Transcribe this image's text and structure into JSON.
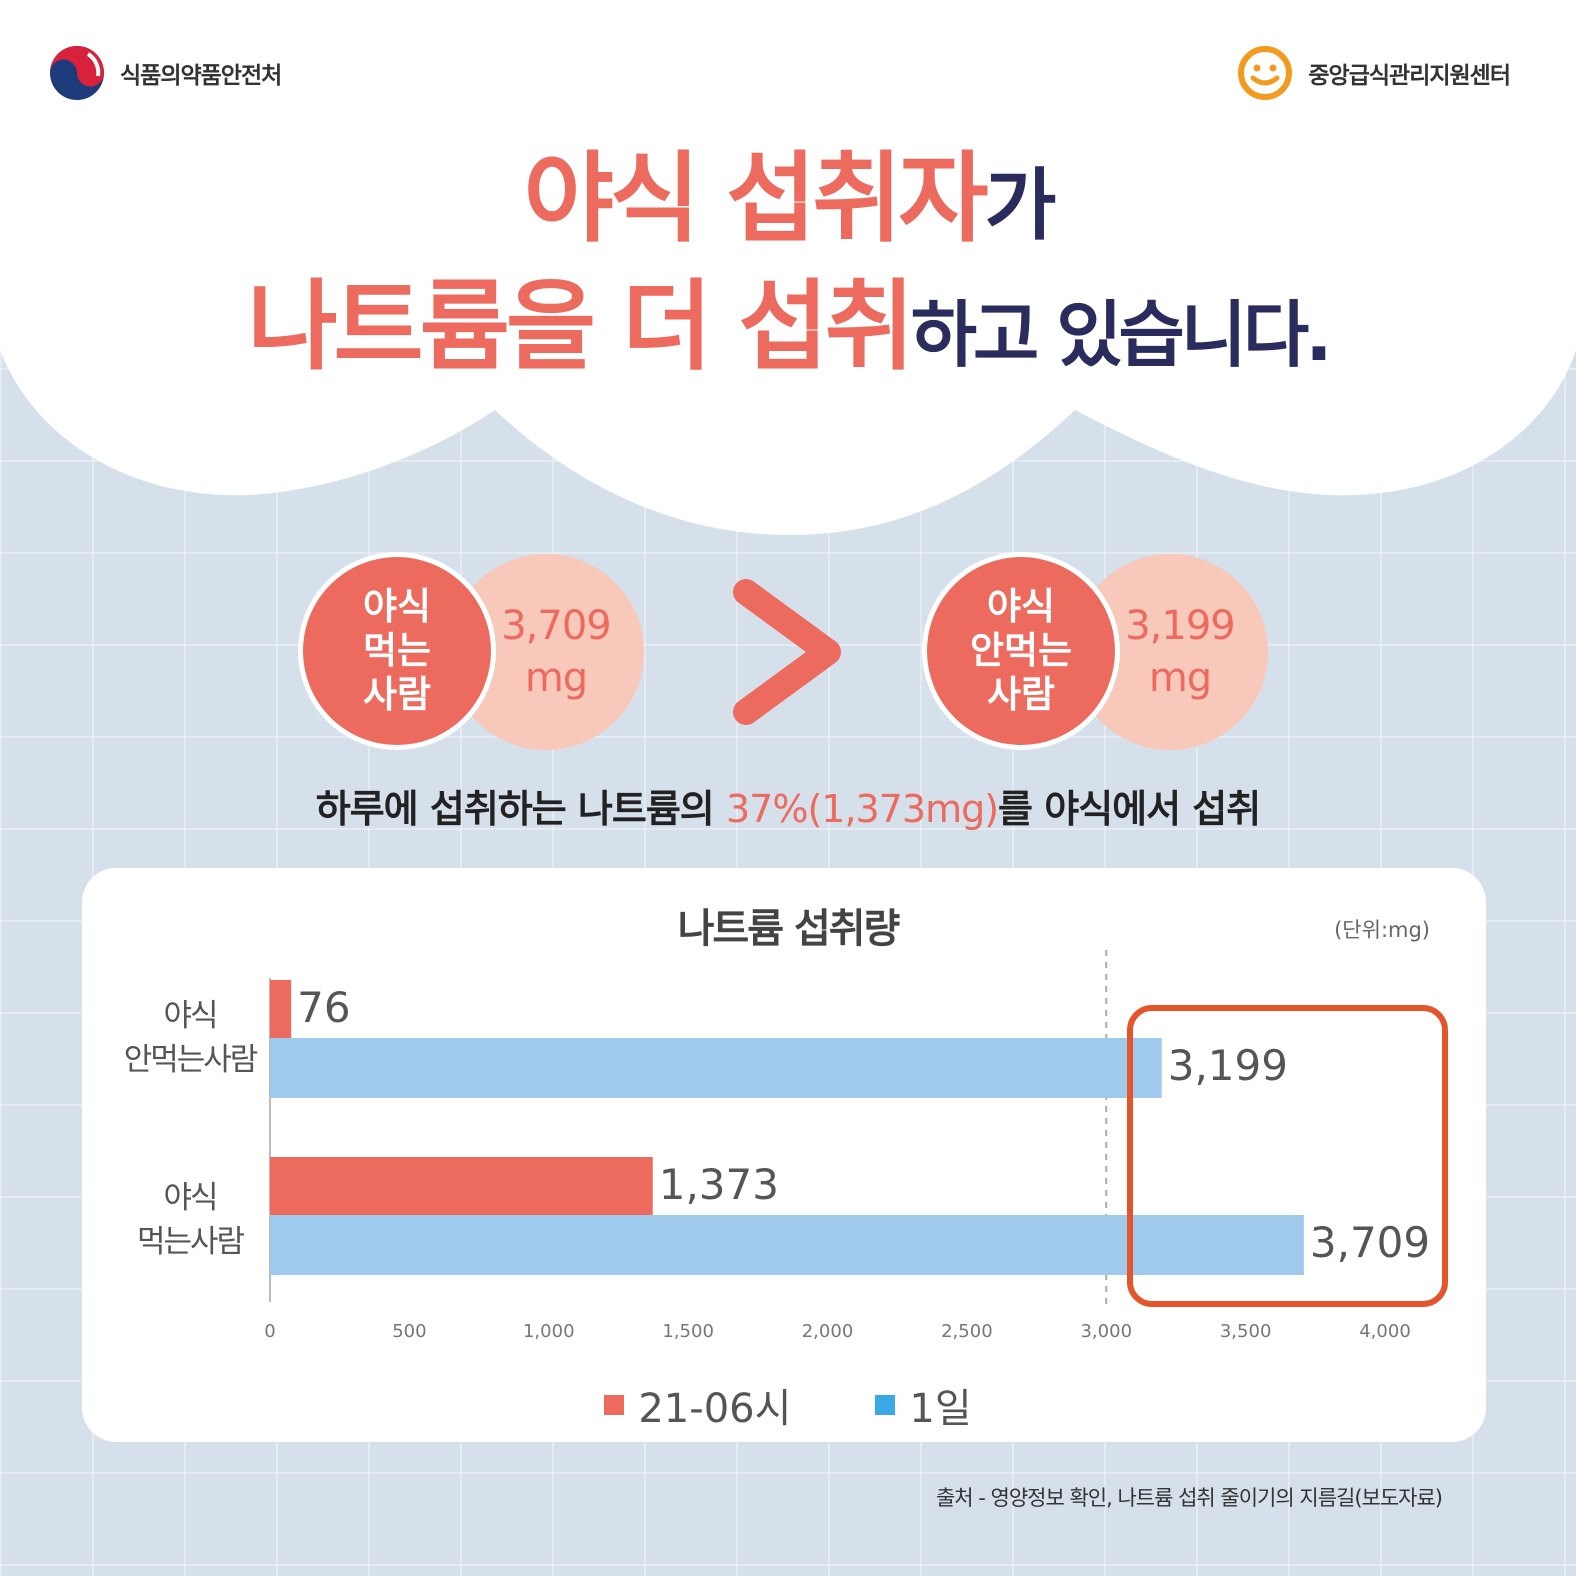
{
  "header": {
    "left_org": "식품의약품안전처",
    "right_org": "중앙급식관리지원센터"
  },
  "headline": {
    "line1_red": "야식 섭취자",
    "line1_navy": "가",
    "line2_red": "나트륨을 더 섭취",
    "line2_navy": "하고 있습니다."
  },
  "comparison": {
    "left": {
      "label_lines": [
        "야식",
        "먹는",
        "사람"
      ],
      "value": "3,709",
      "unit": "mg"
    },
    "right": {
      "label_lines": [
        "야식",
        "안먹는",
        "사람"
      ],
      "value": "3,199",
      "unit": "mg"
    }
  },
  "summary": {
    "before": "하루에 섭취하는 나트륨의 ",
    "highlight": "37%(1,373mg)",
    "after": "를 야식에서 섭취"
  },
  "chart_data": {
    "type": "bar",
    "orientation": "horizontal",
    "title": "나트륨 섭취량",
    "unit_note": "(단위:mg)",
    "categories": [
      "야식 안먹는사람",
      "야식 먹는사람"
    ],
    "category_lines": [
      [
        "야식",
        "안먹는사람"
      ],
      [
        "야식",
        "먹는사람"
      ]
    ],
    "series": [
      {
        "name": "21-06시",
        "color": "#ec6a5e",
        "values": [
          76,
          1373
        ],
        "labels": [
          "76",
          "1,373"
        ]
      },
      {
        "name": "1일",
        "color": "#9fcaed",
        "values": [
          3199,
          3709
        ],
        "labels": [
          "3,199",
          "3,709"
        ]
      }
    ],
    "xlim": [
      0,
      4000
    ],
    "xticks": [
      0,
      500,
      1000,
      1500,
      2000,
      2500,
      3000,
      3500,
      4000
    ],
    "xtick_labels": [
      "0",
      "500",
      "1,000",
      "1,500",
      "2,000",
      "2,500",
      "3,000",
      "3,500",
      "4,000"
    ],
    "reference_line": 3000,
    "highlight_box_color": "#e4552c",
    "legend_position": "bottom"
  },
  "legend_colors": {
    "night": "#ec6a5e",
    "day": "#3aa8e2"
  },
  "source": "출처 - 영양정보 확인, 나트륨 섭취 줄이기의 지름길(보도자료)"
}
